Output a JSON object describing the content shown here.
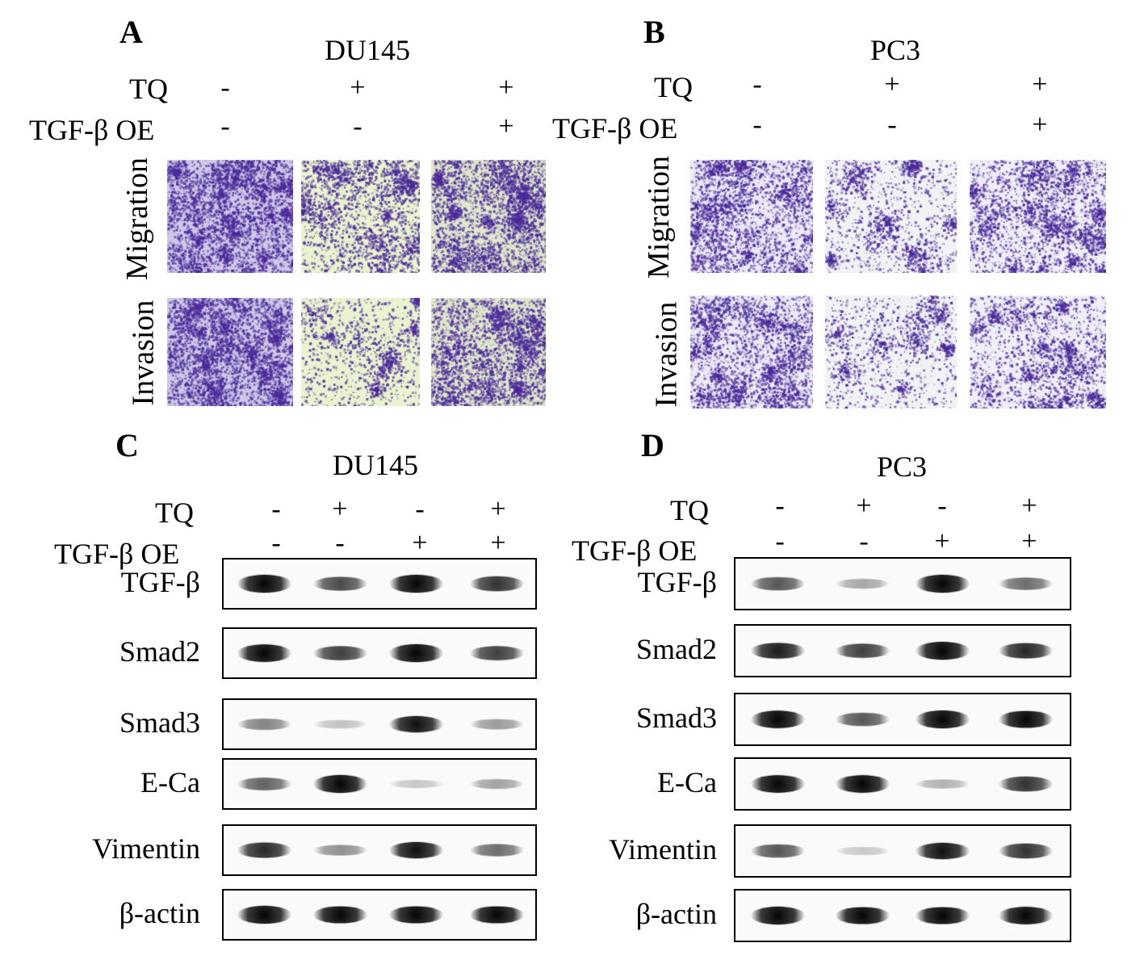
{
  "panels": {
    "A": {
      "letter": "A",
      "cell_line": "DU145"
    },
    "B": {
      "letter": "B",
      "cell_line": "PC3"
    },
    "C": {
      "letter": "C",
      "cell_line": "DU145"
    },
    "D": {
      "letter": "D",
      "cell_line": "PC3"
    }
  },
  "conditions": {
    "tq_label": "TQ",
    "tgf_oe_label": "TGF-β OE",
    "assay_tq": [
      "-",
      "+",
      "+"
    ],
    "assay_tgf": [
      "-",
      "-",
      "+"
    ],
    "blot_tq": [
      "-",
      "+",
      "-",
      "+"
    ],
    "blot_tgf": [
      "-",
      "-",
      "+",
      "+"
    ]
  },
  "assay_rows": {
    "migration": "Migration",
    "invasion": "Invasion"
  },
  "proteins": [
    "TGF-β",
    "Smad2",
    "Smad3",
    "E-Ca",
    "Vimentin",
    "β-actin"
  ],
  "stain_density": {
    "DU145": {
      "migration": [
        0.92,
        0.55,
        0.78
      ],
      "invasion": [
        0.9,
        0.22,
        0.68
      ],
      "background": [
        "#cfc8e8",
        "#e9f3cf",
        "#dfe6cc"
      ]
    },
    "PC3": {
      "migration": [
        0.62,
        0.3,
        0.6
      ],
      "invasion": [
        0.62,
        0.22,
        0.45
      ],
      "background": [
        "#eceaf6",
        "#f1f2f4",
        "#f0eff7"
      ]
    }
  },
  "band_intensity": {
    "DU145": [
      [
        1.0,
        0.6,
        1.0,
        0.7
      ],
      [
        0.95,
        0.65,
        1.0,
        0.65
      ],
      [
        0.35,
        0.08,
        0.85,
        0.25
      ],
      [
        0.5,
        1.0,
        0.06,
        0.22
      ],
      [
        0.75,
        0.3,
        0.85,
        0.45
      ],
      [
        1.0,
        0.9,
        0.9,
        0.9
      ]
    ],
    "PC3": [
      [
        0.55,
        0.2,
        1.0,
        0.45
      ],
      [
        0.8,
        0.65,
        1.0,
        0.75
      ],
      [
        0.95,
        0.55,
        1.0,
        0.9
      ],
      [
        0.95,
        0.95,
        0.15,
        0.7
      ],
      [
        0.55,
        0.05,
        0.85,
        0.7
      ],
      [
        1.0,
        0.9,
        0.9,
        0.95
      ]
    ]
  },
  "colors": {
    "stain": "#4b2a9a",
    "band": "#0a0a0a"
  }
}
